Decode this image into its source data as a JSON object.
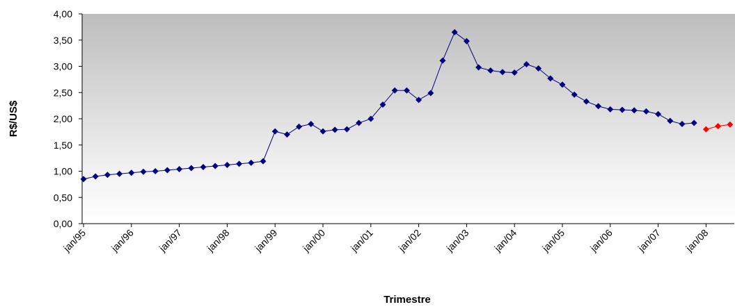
{
  "chart_data": {
    "type": "line",
    "x_label": "Trimestre",
    "y_label": "R$/US$",
    "categories": [
      "jan/95",
      null,
      null,
      null,
      "jan/96",
      null,
      null,
      null,
      "jan/97",
      null,
      null,
      null,
      "jan/98",
      null,
      null,
      null,
      "jan/99",
      null,
      null,
      null,
      "jan/00",
      null,
      null,
      null,
      "jan/01",
      null,
      null,
      null,
      "jan/02",
      null,
      null,
      null,
      "jan/03",
      null,
      null,
      null,
      "jan/04",
      null,
      null,
      null,
      "jan/05",
      null,
      null,
      null,
      "jan/06",
      null,
      null,
      null,
      "jan/07",
      null,
      null,
      null,
      "jan/08",
      null,
      null
    ],
    "series": [
      {
        "color": "#000080",
        "values": [
          0.85,
          0.9,
          0.93,
          0.95,
          0.97,
          0.99,
          1.0,
          1.02,
          1.04,
          1.06,
          1.08,
          1.1,
          1.12,
          1.14,
          1.16,
          1.19,
          1.76,
          1.7,
          1.85,
          1.9,
          1.76,
          1.79,
          1.8,
          1.92,
          2.0,
          2.27,
          2.54,
          2.54,
          2.36,
          2.49,
          3.11,
          3.65,
          3.48,
          2.98,
          2.92,
          2.89,
          2.88,
          3.04,
          2.96,
          2.77,
          2.65,
          2.46,
          2.33,
          2.24,
          2.18,
          2.17,
          2.16,
          2.14,
          2.09,
          1.96,
          1.9,
          1.92,
          null,
          null,
          null
        ]
      },
      {
        "color": "#ff0000",
        "values": [
          null,
          null,
          null,
          null,
          null,
          null,
          null,
          null,
          null,
          null,
          null,
          null,
          null,
          null,
          null,
          null,
          null,
          null,
          null,
          null,
          null,
          null,
          null,
          null,
          null,
          null,
          null,
          null,
          null,
          null,
          null,
          null,
          null,
          null,
          null,
          null,
          null,
          null,
          null,
          null,
          null,
          null,
          null,
          null,
          null,
          null,
          null,
          null,
          null,
          null,
          null,
          null,
          1.8,
          1.86,
          1.89
        ]
      }
    ],
    "ylim": [
      0,
      4
    ],
    "yticks": [
      {
        "value": 0,
        "label": "0,00"
      },
      {
        "value": 0.5,
        "label": "0,50"
      },
      {
        "value": 1,
        "label": "1,00"
      },
      {
        "value": 1.5,
        "label": "1,50"
      },
      {
        "value": 2,
        "label": "2,00"
      },
      {
        "value": 2.5,
        "label": "2,50"
      },
      {
        "value": 3,
        "label": "3,00"
      },
      {
        "value": 3.5,
        "label": "3,50"
      },
      {
        "value": 4,
        "label": "4,00"
      }
    ]
  }
}
